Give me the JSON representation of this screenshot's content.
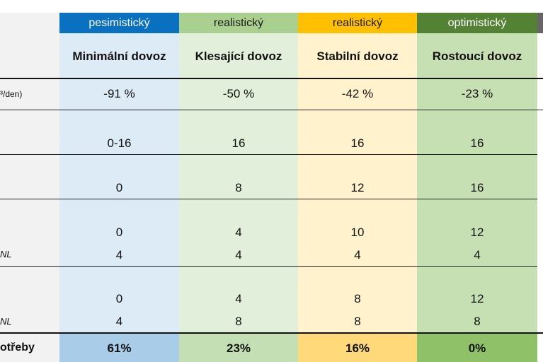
{
  "columns": [
    {
      "tag": "pesimistický",
      "name": "Minimální dovoz",
      "tag_color": "#0a70c0",
      "bg": "#ddebf7",
      "total_bg": "#a9cde9"
    },
    {
      "tag": "realistický",
      "name": "Klesající dovoz",
      "tag_color": "#a9d08e",
      "bg": "#e2efda",
      "total_bg": "#c4dfb4"
    },
    {
      "tag": "realistický",
      "name": "Stabilní dovoz",
      "tag_color": "#ffc000",
      "bg": "#fff2cc",
      "total_bg": "#ffd97a"
    },
    {
      "tag": "optimistický",
      "name": "Rostoucí dovoz",
      "tag_color": "#548235",
      "bg": "#c6e0b4",
      "total_bg": "#8fc268"
    }
  ],
  "left_labels": {
    "row1": "³/den)",
    "row4b": "NL",
    "row5b": "NL",
    "total": "otřeby"
  },
  "rows": {
    "r1": [
      "-91 %",
      "-50 %",
      "-42 %",
      "-23 %"
    ],
    "r2": [
      "0-16",
      "16",
      "16",
      "16"
    ],
    "r3": [
      "0",
      "8",
      "12",
      "16"
    ],
    "r4a": [
      "0",
      "4",
      "10",
      "12"
    ],
    "r4b": [
      "4",
      "4",
      "4",
      "4"
    ],
    "r5a": [
      "0",
      "4",
      "8",
      "12"
    ],
    "r5b": [
      "4",
      "8",
      "8",
      "8"
    ],
    "total": [
      "61%",
      "23%",
      "16%",
      "0%"
    ]
  }
}
